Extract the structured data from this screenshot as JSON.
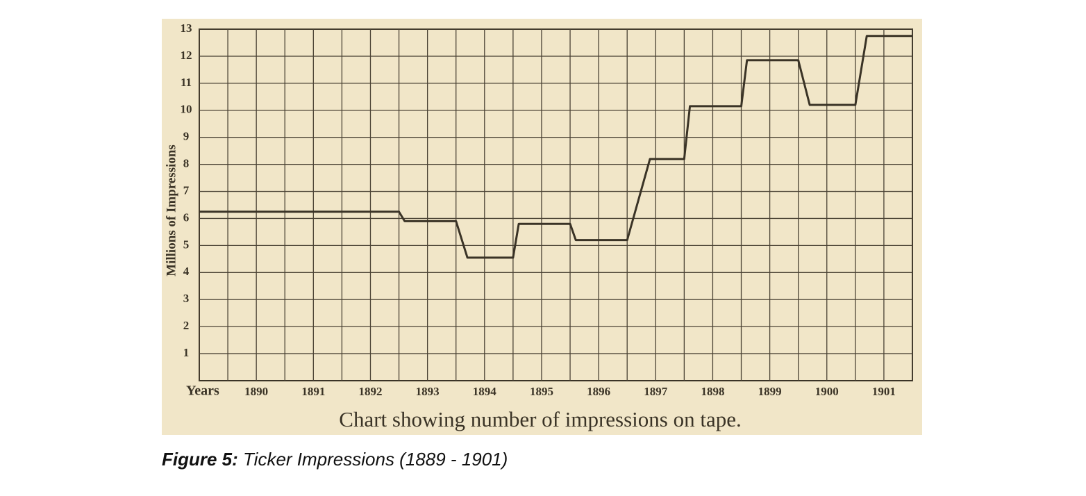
{
  "chart_data": {
    "type": "line",
    "ylabel": "Millions of Impressions",
    "xlabel": "Years",
    "caption": "Chart showing number of impressions on tape.",
    "x": [
      1889,
      1892.5,
      1892.6,
      1893.5,
      1893.7,
      1894.5,
      1894.6,
      1895.5,
      1895.6,
      1896.5,
      1896.9,
      1897.5,
      1897.6,
      1898.5,
      1898.6,
      1899.5,
      1899.7,
      1900.5,
      1900.7,
      1901.5
    ],
    "values": [
      6.25,
      6.25,
      5.9,
      5.9,
      4.55,
      4.55,
      5.8,
      5.8,
      5.2,
      5.2,
      8.2,
      8.2,
      10.15,
      10.15,
      11.85,
      11.85,
      10.2,
      10.2,
      12.75,
      12.75
    ],
    "color": "#3a3326",
    "xlim": [
      1889,
      1901.5
    ],
    "xticks": [
      1890,
      1891,
      1892,
      1893,
      1894,
      1895,
      1896,
      1897,
      1898,
      1899,
      1900,
      1901
    ],
    "xgrid": [
      1889,
      1889.5,
      1890,
      1890.5,
      1891,
      1891.5,
      1892,
      1892.5,
      1893,
      1893.5,
      1894,
      1894.5,
      1895,
      1895.5,
      1896,
      1896.5,
      1897,
      1897.5,
      1898,
      1898.5,
      1899,
      1899.5,
      1900,
      1900.5,
      1901,
      1901.5
    ],
    "ylim": [
      0,
      13
    ],
    "yticks": [
      1,
      2,
      3,
      4,
      5,
      6,
      7,
      8,
      9,
      10,
      11,
      12,
      13
    ],
    "grid": true
  },
  "figure_caption": {
    "label": "Figure 5:",
    "text": "Ticker Impressions (1889 - 1901)"
  }
}
